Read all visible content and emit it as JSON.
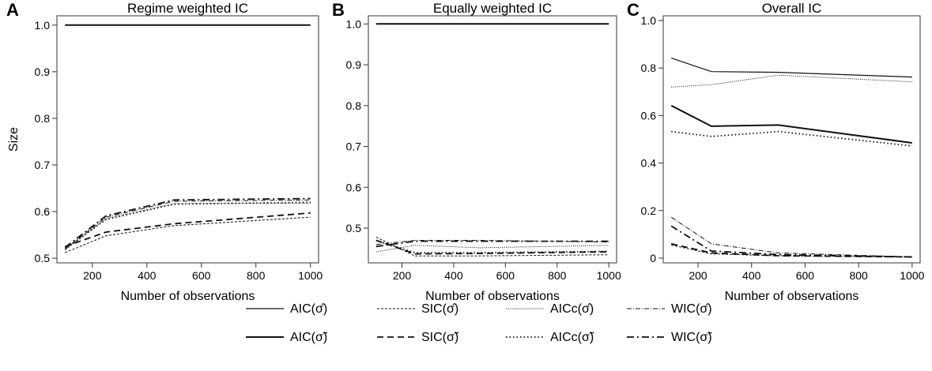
{
  "colors": {
    "line": "#111111",
    "frame": "#333333",
    "background": "#ffffff"
  },
  "chart_data": [
    {
      "type": "line",
      "letter": "A",
      "title": "Regime weighted IC",
      "xlabel": "Number of observations",
      "ylabel": "Size",
      "xlim": [
        70,
        1030
      ],
      "ylim": [
        0.49,
        1.02
      ],
      "xticks": [
        200,
        400,
        600,
        800,
        1000
      ],
      "xtick_labels": [
        "200",
        "400",
        "600",
        "800",
        "1000"
      ],
      "yticks": [
        0.5,
        0.6,
        0.7,
        0.8,
        0.9,
        1.0
      ],
      "ytick_labels": [
        "0.5",
        "0.6",
        "0.7",
        "0.8",
        "0.9",
        "1.0"
      ],
      "x": [
        100,
        250,
        500,
        1000
      ],
      "series": [
        {
          "key": "aic_hat",
          "values": [
            1.0,
            1.0,
            1.0,
            1.0
          ]
        },
        {
          "key": "sic_hat",
          "values": [
            0.512,
            0.548,
            0.57,
            0.588
          ]
        },
        {
          "key": "aicc_hat",
          "values": [
            0.518,
            0.585,
            0.617,
            0.618
          ]
        },
        {
          "key": "wic_hat",
          "values": [
            0.52,
            0.588,
            0.622,
            0.625
          ]
        },
        {
          "key": "aic_tilde",
          "values": [
            1.0,
            1.0,
            1.0,
            1.0
          ]
        },
        {
          "key": "sic_tilde",
          "values": [
            0.525,
            0.556,
            0.574,
            0.597
          ]
        },
        {
          "key": "aicc_tilde",
          "values": [
            0.519,
            0.583,
            0.616,
            0.62
          ]
        },
        {
          "key": "wic_tilde",
          "values": [
            0.523,
            0.591,
            0.625,
            0.628
          ]
        }
      ]
    },
    {
      "type": "line",
      "letter": "B",
      "title": "Equally weighted IC",
      "xlabel": "Number of observations",
      "ylabel": "",
      "xlim": [
        70,
        1030
      ],
      "ylim": [
        0.415,
        1.02
      ],
      "xticks": [
        200,
        400,
        600,
        800,
        1000
      ],
      "xtick_labels": [
        "200",
        "400",
        "600",
        "800",
        "1000"
      ],
      "yticks": [
        0.5,
        0.6,
        0.7,
        0.8,
        0.9,
        1.0
      ],
      "ytick_labels": [
        "0.5",
        "0.6",
        "0.7",
        "0.8",
        "0.9",
        "1.0"
      ],
      "x": [
        100,
        250,
        500,
        1000
      ],
      "series": [
        {
          "key": "aic_hat",
          "values": [
            1.0,
            1.0,
            1.0,
            1.0
          ]
        },
        {
          "key": "sic_hat",
          "values": [
            0.478,
            0.432,
            0.432,
            0.435
          ]
        },
        {
          "key": "aicc_hat",
          "values": [
            0.442,
            0.458,
            0.452,
            0.458
          ]
        },
        {
          "key": "wic_hat",
          "values": [
            0.46,
            0.47,
            0.47,
            0.466
          ]
        },
        {
          "key": "aic_tilde",
          "values": [
            1.0,
            1.0,
            1.0,
            1.0
          ]
        },
        {
          "key": "sic_tilde",
          "values": [
            0.47,
            0.437,
            0.438,
            0.442
          ]
        },
        {
          "key": "aicc_tilde",
          "values": [
            0.47,
            0.44,
            0.44,
            0.443
          ]
        },
        {
          "key": "wic_tilde",
          "values": [
            0.455,
            0.468,
            0.468,
            0.468
          ]
        }
      ]
    },
    {
      "type": "line",
      "letter": "C",
      "title": "Overall IC",
      "xlabel": "Number of observations",
      "ylabel": "",
      "xlim": [
        70,
        1030
      ],
      "ylim": [
        -0.02,
        1.02
      ],
      "xticks": [
        200,
        400,
        600,
        800,
        1000
      ],
      "xtick_labels": [
        "200",
        "400",
        "600",
        "800",
        "1000"
      ],
      "yticks": [
        0,
        0.2,
        0.4,
        0.6,
        0.8,
        1.0
      ],
      "ytick_labels": [
        "0",
        "0.2",
        "0.4",
        "0.6",
        "0.8",
        "1.0"
      ],
      "x": [
        100,
        250,
        500,
        1000
      ],
      "series": [
        {
          "key": "aic_hat",
          "values": [
            0.842,
            0.785,
            0.782,
            0.762
          ]
        },
        {
          "key": "sic_hat",
          "values": [
            0.055,
            0.018,
            0.01,
            0.005
          ]
        },
        {
          "key": "aicc_hat",
          "values": [
            0.72,
            0.73,
            0.77,
            0.742
          ]
        },
        {
          "key": "wic_hat",
          "values": [
            0.172,
            0.06,
            0.022,
            0.005
          ]
        },
        {
          "key": "aic_tilde",
          "values": [
            0.642,
            0.555,
            0.56,
            0.485
          ]
        },
        {
          "key": "sic_tilde",
          "values": [
            0.06,
            0.022,
            0.01,
            0.005
          ]
        },
        {
          "key": "aicc_tilde",
          "values": [
            0.533,
            0.512,
            0.533,
            0.472
          ]
        },
        {
          "key": "wic_tilde",
          "values": [
            0.135,
            0.03,
            0.015,
            0.005
          ]
        }
      ]
    }
  ],
  "legend": {
    "placement": "bottom",
    "items": [
      {
        "key": "aic_hat",
        "label": "AIC(σ̂)"
      },
      {
        "key": "sic_hat",
        "label": "SIC(σ̂)"
      },
      {
        "key": "aicc_hat",
        "label": "AICc(σ̂)"
      },
      {
        "key": "wic_hat",
        "label": "WIC(σ̂)"
      },
      {
        "key": "aic_tilde",
        "label": "AIC(σ̃)"
      },
      {
        "key": "sic_tilde",
        "label": "SIC(σ̃)"
      },
      {
        "key": "aicc_tilde",
        "label": "AICc(σ̃)"
      },
      {
        "key": "wic_tilde",
        "label": "WIC(σ̃)"
      }
    ]
  }
}
